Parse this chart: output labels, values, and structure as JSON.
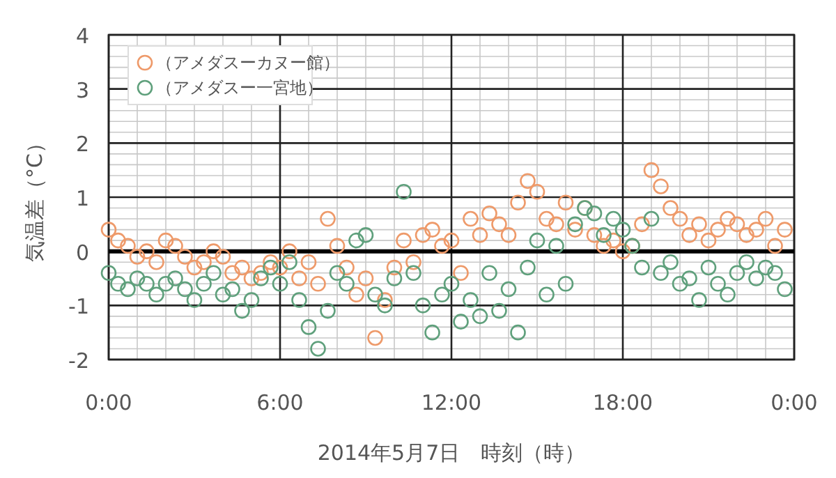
{
  "chart_data": {
    "type": "scatter",
    "xlabel": "2014年5月7日　時刻（時）",
    "ylabel": "気温差（°C）",
    "x": [
      0,
      0.33,
      0.67,
      1,
      1.33,
      1.67,
      2,
      2.33,
      2.67,
      3,
      3.33,
      3.67,
      4,
      4.33,
      4.67,
      5,
      5.33,
      5.67,
      6,
      6.33,
      6.67,
      7,
      7.33,
      7.67,
      8,
      8.33,
      8.67,
      9,
      9.33,
      9.67,
      10,
      10.33,
      10.67,
      11,
      11.33,
      11.67,
      12,
      12.33,
      12.67,
      13,
      13.33,
      13.67,
      14,
      14.33,
      14.67,
      15,
      15.33,
      15.67,
      16,
      16.33,
      16.67,
      17,
      17.33,
      17.67,
      18,
      18.33,
      18.67,
      19,
      19.33,
      19.67,
      20,
      20.33,
      20.67,
      21,
      21.33,
      21.67,
      22,
      22.33,
      22.67,
      23,
      23.33,
      23.67
    ],
    "series": [
      {
        "name": "（アメダスーカヌー館）",
        "color": "#ee9a6a",
        "values": [
          0.4,
          0.2,
          0.1,
          -0.1,
          0,
          -0.2,
          0.2,
          0.1,
          -0.1,
          -0.3,
          -0.2,
          0,
          -0.1,
          -0.4,
          -0.3,
          -0.5,
          -0.4,
          -0.2,
          -0.3,
          0,
          -0.5,
          -0.2,
          -0.6,
          0.6,
          0.1,
          -0.3,
          -0.8,
          -0.5,
          -1.6,
          -0.9,
          -0.3,
          0.2,
          -0.2,
          0.3,
          0.4,
          0.1,
          0.2,
          -0.4,
          0.6,
          0.3,
          0.7,
          0.5,
          0.3,
          0.9,
          1.3,
          1.1,
          0.6,
          0.5,
          0.9,
          0.4,
          0.8,
          0.3,
          0.1,
          0.2,
          0,
          0.1,
          0.5,
          1.5,
          1.2,
          0.8,
          0.6,
          0.3,
          0.5,
          0.2,
          0.4,
          0.6,
          0.5,
          0.3,
          0.4,
          0.6,
          0.1,
          0.4
        ]
      },
      {
        "name": "（アメダスー一宮地）",
        "color": "#5fa07c",
        "values": [
          -0.4,
          -0.6,
          -0.7,
          -0.5,
          -0.6,
          -0.8,
          -0.6,
          -0.5,
          -0.7,
          -0.9,
          -0.6,
          -0.4,
          -0.8,
          -0.7,
          -1.1,
          -0.9,
          -0.5,
          -0.3,
          -0.6,
          -0.2,
          -0.9,
          -1.4,
          -1.8,
          -1.1,
          -0.4,
          -0.6,
          0.2,
          0.3,
          -0.8,
          -1,
          -0.5,
          1.1,
          -0.4,
          -1,
          -1.5,
          -0.8,
          -0.6,
          -1.3,
          -0.9,
          -1.2,
          -0.4,
          -1.1,
          -0.7,
          -1.5,
          -0.3,
          0.2,
          -0.8,
          0.1,
          -0.6,
          0.5,
          0.8,
          0.7,
          0.3,
          0.6,
          0.4,
          0.1,
          -0.3,
          0.6,
          -0.4,
          -0.2,
          -0.6,
          -0.5,
          -0.9,
          -0.3,
          -0.6,
          -0.8,
          -0.4,
          -0.2,
          -0.5,
          -0.3,
          -0.4,
          -0.7
        ]
      }
    ],
    "xlim": [
      0,
      24
    ],
    "xticks": [
      {
        "value": 0,
        "label": "0:00"
      },
      {
        "value": 6,
        "label": "6:00"
      },
      {
        "value": 12,
        "label": "12:00"
      },
      {
        "value": 18,
        "label": "18:00"
      },
      {
        "value": 24,
        "label": "0:00"
      }
    ],
    "ylim": [
      -2,
      4
    ],
    "yticks": [
      -2,
      -1,
      0,
      1,
      2,
      3,
      4
    ],
    "ref_lines": [
      {
        "axis": "y",
        "value": 0,
        "color": "#000000"
      }
    ],
    "grid": true,
    "legend": "top left",
    "marker": "circle"
  }
}
